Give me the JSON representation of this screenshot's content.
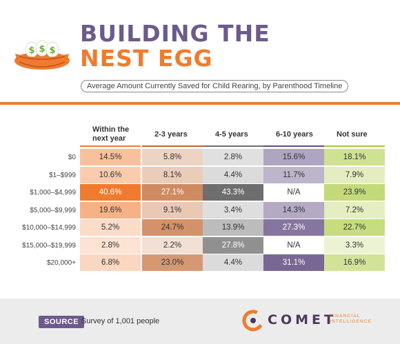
{
  "header": {
    "title_line1": "BUILDING THE",
    "title_line2": "NEST EGG",
    "subtitle": "Average Amount Currently Saved for Child Rearing, by Parenthood Timeline"
  },
  "chart_data": {
    "type": "table",
    "title": "BUILDING THE NEST EGG",
    "subtitle": "Average Amount Currently Saved for Child Rearing, by Parenthood Timeline",
    "columns": [
      "Within the next year",
      "2-3 years",
      "4-5 years",
      "6-10 years",
      "Not sure"
    ],
    "rows": [
      "$0",
      "$1–$999",
      "$1,000–$4,999",
      "$5,000–$9,999",
      "$10,000–$14,999",
      "$15,000–$19,999",
      "$20,000+"
    ],
    "values": [
      [
        "14.5%",
        "5.8%",
        "2.8%",
        "15.6%",
        "18.1%"
      ],
      [
        "10.6%",
        "8.1%",
        "4.4%",
        "11.7%",
        "7.9%"
      ],
      [
        "40.6%",
        "27.1%",
        "43.3%",
        "N/A",
        "23.9%"
      ],
      [
        "19.6%",
        "9.1%",
        "3.4%",
        "14.3%",
        "7.2%"
      ],
      [
        "5.2%",
        "24.7%",
        "13.9%",
        "27.3%",
        "22.7%"
      ],
      [
        "2.8%",
        "2.2%",
        "27.8%",
        "N/A",
        "3.3%"
      ],
      [
        "6.8%",
        "23.0%",
        "4.4%",
        "31.1%",
        "16.9%"
      ]
    ],
    "column_colors": [
      "#f07b2e",
      "#c0632a",
      "#6e6e6e",
      "#5f4a80",
      "#a8c93a"
    ]
  },
  "footer": {
    "source_label": "SOURCE",
    "source_text": "Survey of 1,001 people",
    "logo_name": "COMET",
    "logo_sub": "FINANCIAL INTELLIGENCE"
  }
}
